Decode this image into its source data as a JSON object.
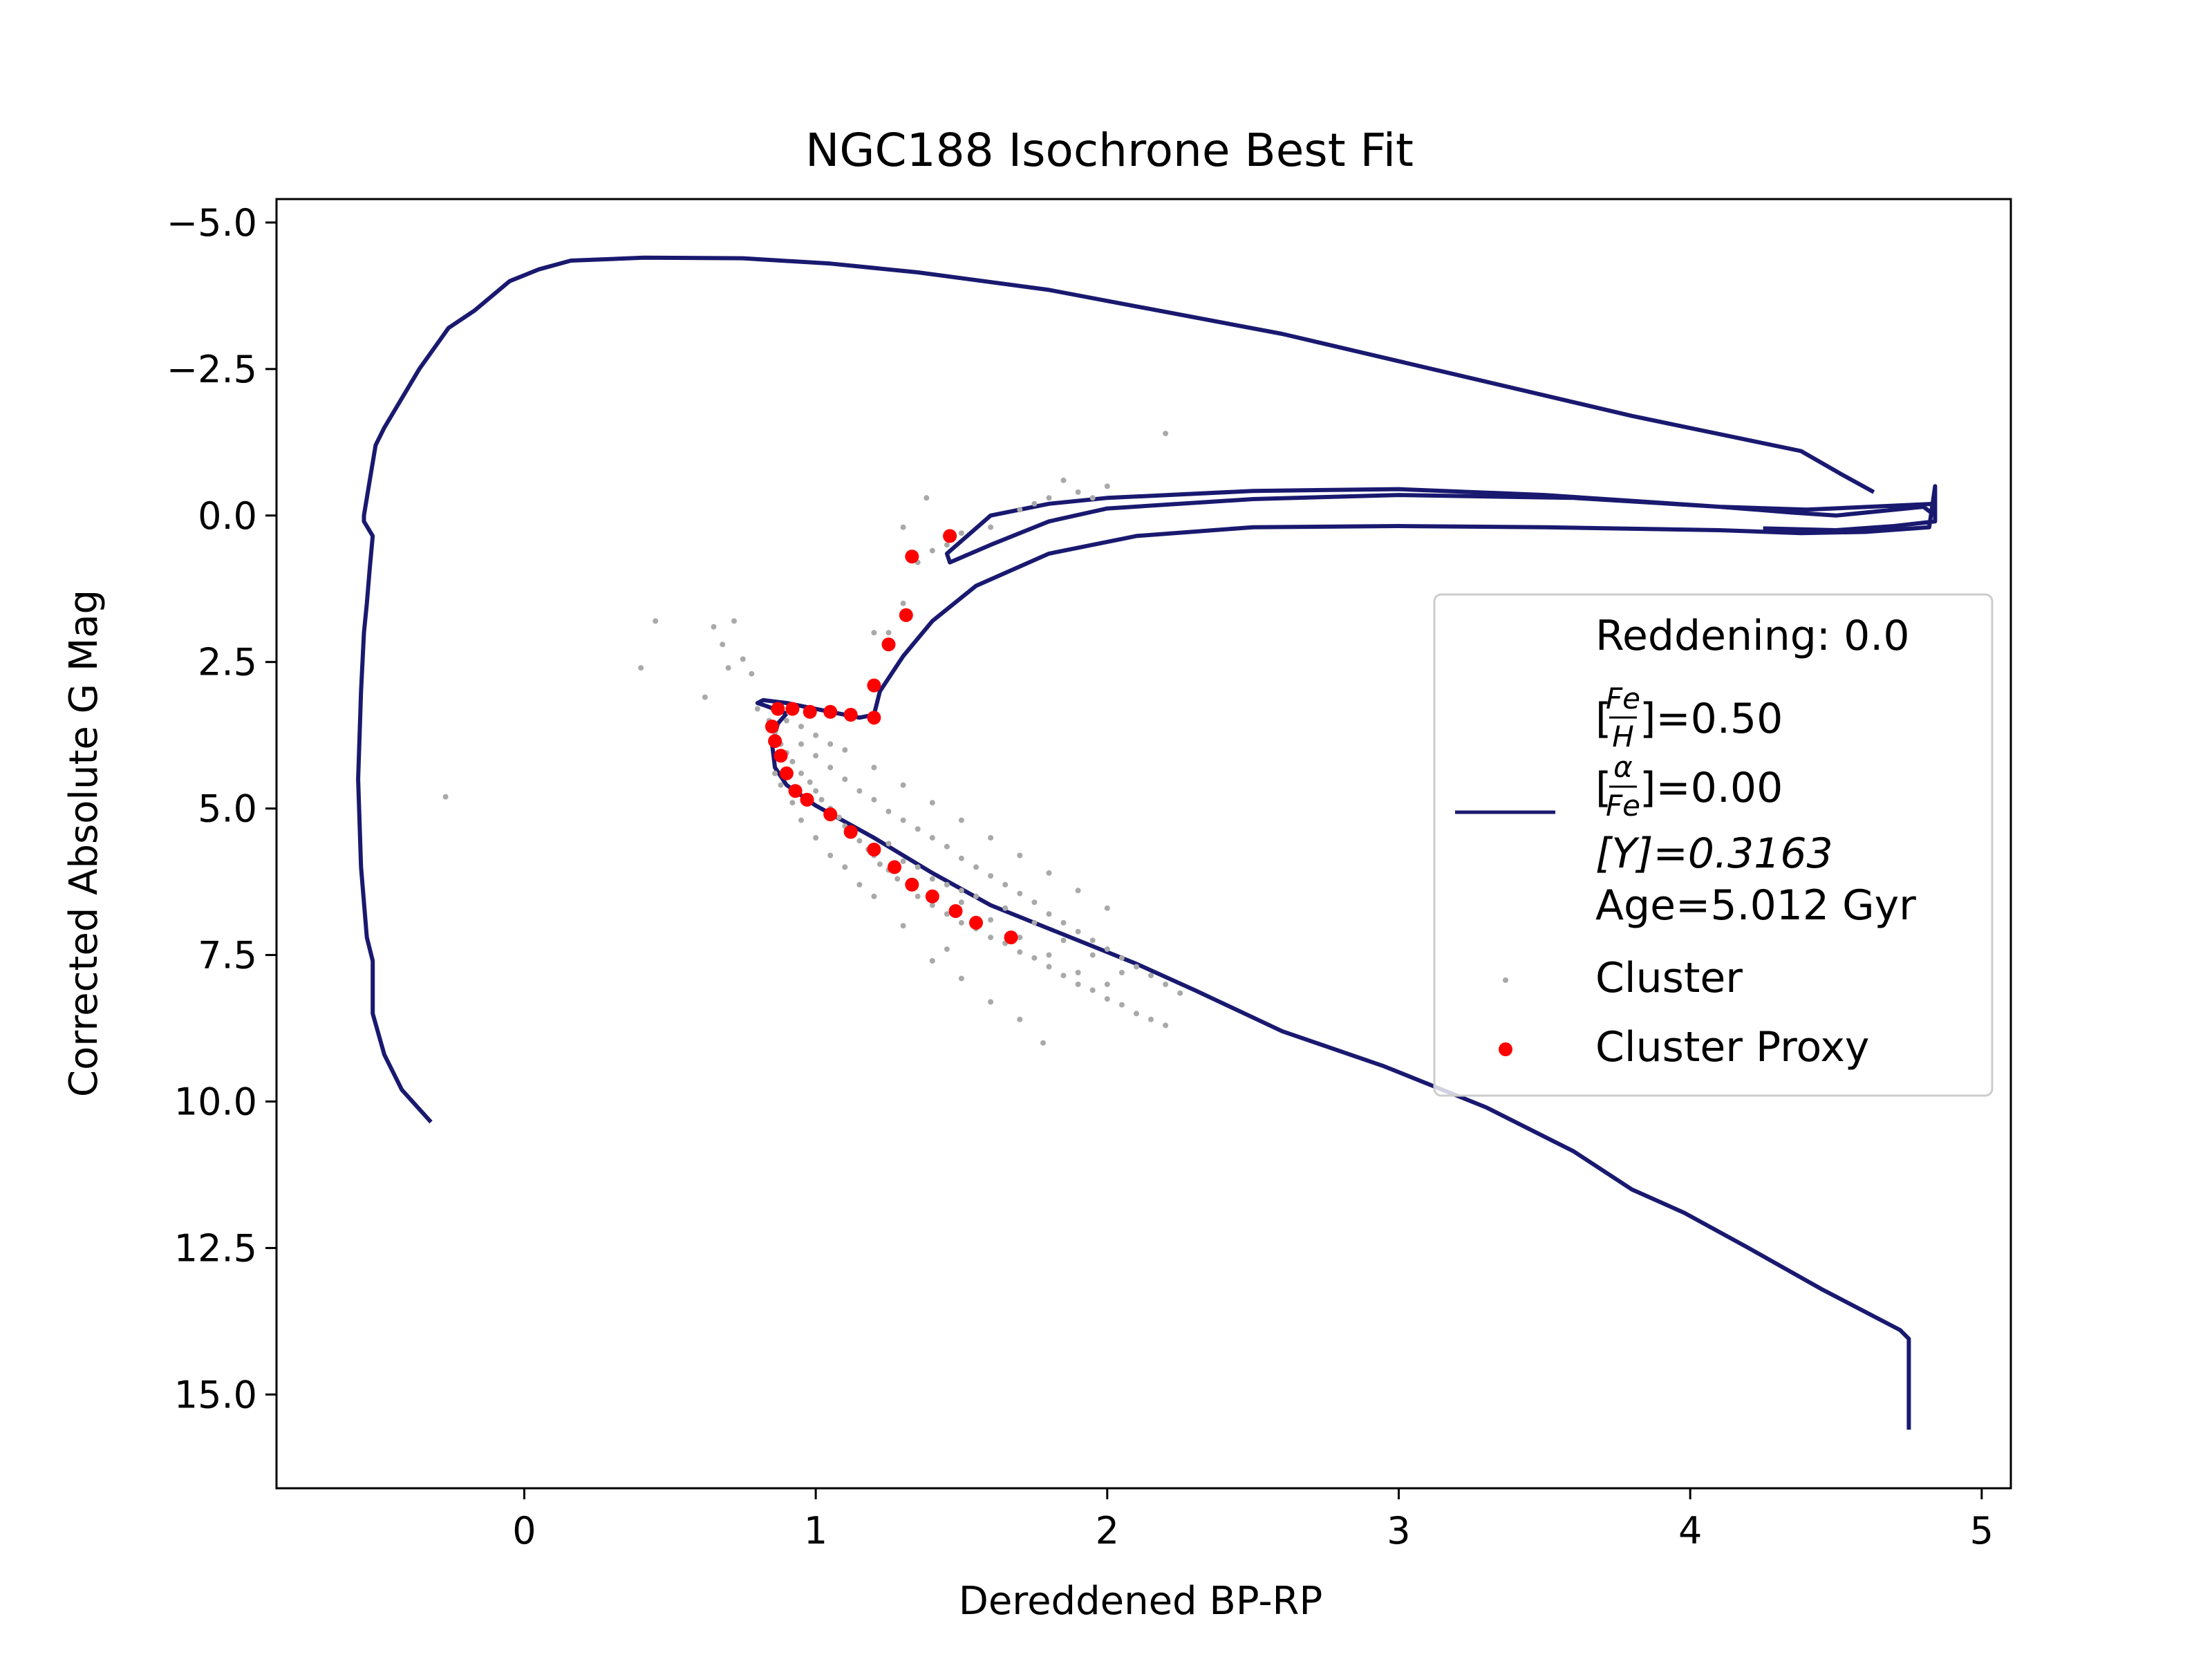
{
  "chart_data": {
    "type": "line+scatter",
    "title": "NGC188 Isochrone Best Fit",
    "xlabel": "Dereddened BP-RP",
    "ylabel": "Corrected Absolute G Mag",
    "xlim": [
      -0.85,
      5.1
    ],
    "ylim": [
      16.6,
      -5.4
    ],
    "y_inverted": true,
    "xticks": [
      0,
      1,
      2,
      3,
      4,
      5
    ],
    "xtick_labels": [
      "0",
      "1",
      "2",
      "3",
      "4",
      "5"
    ],
    "yticks": [
      -5.0,
      -2.5,
      0.0,
      2.5,
      5.0,
      7.5,
      10.0,
      12.5,
      15.0
    ],
    "ytick_labels": [
      "−5.0",
      "−2.5",
      "0.0",
      "2.5",
      "5.0",
      "7.5",
      "10.0",
      "12.5",
      "15.0"
    ],
    "grid": false,
    "legend": {
      "placement": "center-right",
      "reddening_label": "Reddening: 0.0",
      "feh_value": "]=0.50",
      "afe_value": "]=0.00",
      "y_label": "[Y]=0.3163",
      "age_label": "Age=5.012 Gyr",
      "cluster_label": "Cluster",
      "proxy_label": "Cluster Proxy"
    },
    "colors": {
      "isochrone": "#191970",
      "cluster": "#a9a9a9",
      "proxy": "#ff0000"
    },
    "series": [
      {
        "kind": "line",
        "points": [
          [
            -0.32,
            10.35
          ],
          [
            -0.42,
            9.8
          ],
          [
            -0.48,
            9.2
          ],
          [
            -0.52,
            8.5
          ],
          [
            -0.52,
            7.6
          ],
          [
            -0.54,
            7.2
          ],
          [
            -0.56,
            6.0
          ],
          [
            -0.57,
            4.5
          ],
          [
            -0.56,
            3.0
          ],
          [
            -0.55,
            2.0
          ],
          [
            -0.54,
            1.5
          ],
          [
            -0.53,
            0.9
          ],
          [
            -0.52,
            0.35
          ],
          [
            -0.55,
            0.1
          ],
          [
            -0.55,
            0.0
          ],
          [
            -0.53,
            -0.6
          ],
          [
            -0.51,
            -1.2
          ],
          [
            -0.48,
            -1.5
          ],
          [
            -0.36,
            -2.5
          ],
          [
            -0.26,
            -3.2
          ],
          [
            -0.17,
            -3.5
          ],
          [
            -0.05,
            -4.0
          ],
          [
            0.05,
            -4.2
          ],
          [
            0.16,
            -4.35
          ],
          [
            0.41,
            -4.4
          ],
          [
            0.75,
            -4.39
          ],
          [
            1.05,
            -4.3
          ],
          [
            1.35,
            -4.15
          ],
          [
            1.8,
            -3.85
          ],
          [
            2.6,
            -3.1
          ],
          [
            3.2,
            -2.4
          ],
          [
            3.8,
            -1.7
          ],
          [
            4.38,
            -1.1
          ],
          [
            4.52,
            -0.7
          ],
          [
            4.63,
            -0.4
          ]
        ]
      },
      {
        "kind": "line",
        "points": [
          [
            0.9,
            3.38
          ],
          [
            0.87,
            3.55
          ],
          [
            0.85,
            3.9
          ],
          [
            0.86,
            4.3
          ],
          [
            0.9,
            4.6
          ],
          [
            1.0,
            4.95
          ],
          [
            1.2,
            5.5
          ],
          [
            1.4,
            6.1
          ],
          [
            1.6,
            6.65
          ],
          [
            1.85,
            7.15
          ],
          [
            2.1,
            7.65
          ],
          [
            2.3,
            8.1
          ],
          [
            2.6,
            8.8
          ],
          [
            2.95,
            9.4
          ],
          [
            3.3,
            10.1
          ],
          [
            3.6,
            10.85
          ],
          [
            3.8,
            11.5
          ],
          [
            3.98,
            11.9
          ],
          [
            4.2,
            12.5
          ],
          [
            4.45,
            13.2
          ],
          [
            4.72,
            13.9
          ],
          [
            4.75,
            14.05
          ],
          [
            4.75,
            15.6
          ]
        ]
      },
      {
        "kind": "line",
        "points": [
          [
            0.9,
            3.38
          ],
          [
            0.83,
            3.25
          ],
          [
            0.8,
            3.2
          ],
          [
            0.82,
            3.15
          ],
          [
            0.9,
            3.2
          ],
          [
            1.05,
            3.35
          ],
          [
            1.15,
            3.45
          ],
          [
            1.2,
            3.4
          ],
          [
            1.22,
            3.0
          ],
          [
            1.3,
            2.4
          ],
          [
            1.4,
            1.8
          ],
          [
            1.55,
            1.2
          ],
          [
            1.8,
            0.65
          ],
          [
            2.1,
            0.35
          ],
          [
            2.5,
            0.2
          ],
          [
            3.0,
            0.18
          ],
          [
            3.5,
            0.2
          ],
          [
            4.1,
            0.25
          ],
          [
            4.38,
            0.3
          ],
          [
            4.6,
            0.28
          ],
          [
            4.82,
            0.2
          ],
          [
            4.84,
            -0.5
          ],
          [
            4.84,
            0.0
          ],
          [
            4.8,
            -0.15
          ],
          [
            4.5,
            0.0
          ],
          [
            4.35,
            -0.05
          ],
          [
            4.1,
            -0.15
          ],
          [
            3.5,
            -0.35
          ],
          [
            3.0,
            -0.45
          ],
          [
            2.5,
            -0.42
          ],
          [
            2.0,
            -0.3
          ],
          [
            1.8,
            -0.2
          ],
          [
            1.6,
            0.0
          ],
          [
            1.45,
            0.65
          ],
          [
            1.46,
            0.8
          ],
          [
            1.6,
            0.5
          ],
          [
            1.8,
            0.1
          ],
          [
            2.0,
            -0.12
          ],
          [
            2.5,
            -0.28
          ],
          [
            3.0,
            -0.35
          ],
          [
            3.6,
            -0.3
          ],
          [
            4.1,
            -0.15
          ],
          [
            4.4,
            -0.1
          ],
          [
            4.84,
            -0.2
          ],
          [
            4.84,
            0.1
          ],
          [
            4.7,
            0.18
          ],
          [
            4.5,
            0.25
          ],
          [
            4.25,
            0.22
          ]
        ]
      },
      {
        "kind": "scatter",
        "name": "Cluster",
        "points": [
          [
            -0.27,
            4.8
          ],
          [
            0.4,
            2.6
          ],
          [
            0.45,
            1.8
          ],
          [
            0.65,
            1.9
          ],
          [
            0.72,
            1.8
          ],
          [
            0.68,
            2.2
          ],
          [
            0.7,
            2.6
          ],
          [
            0.75,
            2.45
          ],
          [
            0.78,
            2.7
          ],
          [
            0.62,
            3.1
          ],
          [
            0.8,
            3.3
          ],
          [
            0.84,
            3.5
          ],
          [
            0.86,
            3.7
          ],
          [
            0.88,
            3.9
          ],
          [
            0.9,
            4.05
          ],
          [
            0.92,
            4.2
          ],
          [
            0.95,
            4.4
          ],
          [
            0.98,
            4.55
          ],
          [
            1.0,
            4.7
          ],
          [
            1.02,
            4.85
          ],
          [
            1.05,
            5.0
          ],
          [
            1.08,
            5.15
          ],
          [
            1.1,
            5.3
          ],
          [
            1.12,
            5.4
          ],
          [
            1.15,
            5.55
          ],
          [
            1.18,
            5.7
          ],
          [
            1.2,
            5.8
          ],
          [
            1.22,
            5.95
          ],
          [
            1.25,
            6.05
          ],
          [
            1.28,
            6.2
          ],
          [
            1.32,
            6.35
          ],
          [
            1.35,
            6.5
          ],
          [
            1.4,
            6.65
          ],
          [
            1.45,
            6.8
          ],
          [
            1.5,
            6.95
          ],
          [
            1.55,
            7.05
          ],
          [
            1.6,
            7.2
          ],
          [
            1.65,
            7.3
          ],
          [
            1.7,
            7.45
          ],
          [
            1.75,
            7.55
          ],
          [
            1.8,
            7.7
          ],
          [
            1.85,
            7.85
          ],
          [
            1.9,
            8.0
          ],
          [
            1.95,
            8.1
          ],
          [
            2.0,
            8.25
          ],
          [
            2.05,
            8.35
          ],
          [
            2.1,
            8.5
          ],
          [
            2.15,
            8.6
          ],
          [
            2.2,
            8.7
          ],
          [
            0.95,
            3.9
          ],
          [
            1.0,
            4.1
          ],
          [
            1.05,
            4.3
          ],
          [
            1.1,
            4.5
          ],
          [
            1.15,
            4.7
          ],
          [
            1.2,
            4.85
          ],
          [
            1.25,
            5.05
          ],
          [
            1.3,
            5.2
          ],
          [
            1.35,
            5.35
          ],
          [
            1.4,
            5.5
          ],
          [
            1.45,
            5.65
          ],
          [
            1.5,
            5.85
          ],
          [
            1.55,
            6.0
          ],
          [
            1.6,
            6.15
          ],
          [
            1.65,
            6.3
          ],
          [
            1.7,
            6.45
          ],
          [
            1.75,
            6.6
          ],
          [
            1.8,
            6.8
          ],
          [
            1.85,
            6.95
          ],
          [
            1.9,
            7.1
          ],
          [
            1.95,
            7.25
          ],
          [
            2.0,
            7.4
          ],
          [
            2.05,
            7.55
          ],
          [
            2.1,
            7.7
          ],
          [
            2.15,
            7.85
          ],
          [
            2.2,
            8.0
          ],
          [
            2.25,
            8.15
          ],
          [
            1.1,
            4.0
          ],
          [
            1.2,
            4.3
          ],
          [
            1.3,
            4.6
          ],
          [
            1.4,
            4.9
          ],
          [
            1.5,
            5.2
          ],
          [
            1.6,
            5.5
          ],
          [
            1.7,
            5.8
          ],
          [
            1.8,
            6.1
          ],
          [
            1.9,
            6.4
          ],
          [
            2.0,
            6.7
          ],
          [
            1.5,
            6.6
          ],
          [
            1.6,
            6.9
          ],
          [
            1.7,
            7.2
          ],
          [
            1.8,
            7.5
          ],
          [
            1.9,
            7.8
          ],
          [
            2.0,
            8.0
          ],
          [
            1.4,
            6.2
          ],
          [
            1.5,
            6.4
          ],
          [
            1.3,
            5.9
          ],
          [
            1.25,
            5.6
          ],
          [
            1.35,
            6.0
          ],
          [
            1.45,
            6.3
          ],
          [
            1.55,
            6.5
          ],
          [
            1.65,
            6.7
          ],
          [
            1.75,
            6.95
          ],
          [
            1.85,
            7.25
          ],
          [
            1.95,
            7.5
          ],
          [
            2.05,
            7.8
          ],
          [
            1.78,
            9.0
          ],
          [
            1.7,
            8.6
          ],
          [
            1.6,
            8.3
          ],
          [
            1.5,
            7.9
          ],
          [
            1.4,
            7.6
          ],
          [
            1.45,
            7.4
          ],
          [
            1.3,
            7.0
          ],
          [
            1.2,
            6.5
          ],
          [
            1.15,
            6.3
          ],
          [
            1.1,
            6.0
          ],
          [
            1.05,
            5.8
          ],
          [
            1.0,
            5.5
          ],
          [
            0.95,
            5.2
          ],
          [
            0.92,
            4.9
          ],
          [
            0.88,
            4.6
          ],
          [
            0.86,
            4.4
          ],
          [
            0.9,
            3.5
          ],
          [
            0.95,
            3.6
          ],
          [
            1.0,
            3.75
          ],
          [
            1.05,
            3.9
          ],
          [
            1.25,
            2.0
          ],
          [
            1.3,
            1.5
          ],
          [
            1.35,
            0.8
          ],
          [
            1.4,
            0.6
          ],
          [
            1.45,
            0.5
          ],
          [
            1.5,
            0.3
          ],
          [
            1.6,
            0.2
          ],
          [
            1.7,
            -0.1
          ],
          [
            1.75,
            -0.2
          ],
          [
            1.8,
            -0.3
          ],
          [
            1.9,
            -0.4
          ],
          [
            2.0,
            -0.5
          ],
          [
            1.38,
            -0.3
          ],
          [
            1.3,
            0.2
          ],
          [
            1.2,
            2.0
          ],
          [
            2.2,
            -1.4
          ],
          [
            1.95,
            -0.3
          ],
          [
            1.85,
            -0.6
          ]
        ]
      },
      {
        "kind": "scatter",
        "name": "Cluster Proxy",
        "points": [
          [
            1.46,
            0.35
          ],
          [
            1.33,
            0.7
          ],
          [
            1.31,
            1.7
          ],
          [
            1.25,
            2.2
          ],
          [
            1.2,
            2.9
          ],
          [
            1.2,
            3.45
          ],
          [
            0.87,
            3.3
          ],
          [
            0.92,
            3.3
          ],
          [
            0.98,
            3.35
          ],
          [
            1.05,
            3.35
          ],
          [
            1.12,
            3.4
          ],
          [
            0.85,
            3.6
          ],
          [
            0.86,
            3.85
          ],
          [
            0.88,
            4.1
          ],
          [
            0.9,
            4.4
          ],
          [
            0.93,
            4.7
          ],
          [
            0.97,
            4.85
          ],
          [
            1.05,
            5.1
          ],
          [
            1.12,
            5.4
          ],
          [
            1.2,
            5.7
          ],
          [
            1.27,
            6.0
          ],
          [
            1.33,
            6.3
          ],
          [
            1.4,
            6.5
          ],
          [
            1.48,
            6.75
          ],
          [
            1.55,
            6.95
          ],
          [
            1.67,
            7.2
          ]
        ]
      }
    ]
  }
}
